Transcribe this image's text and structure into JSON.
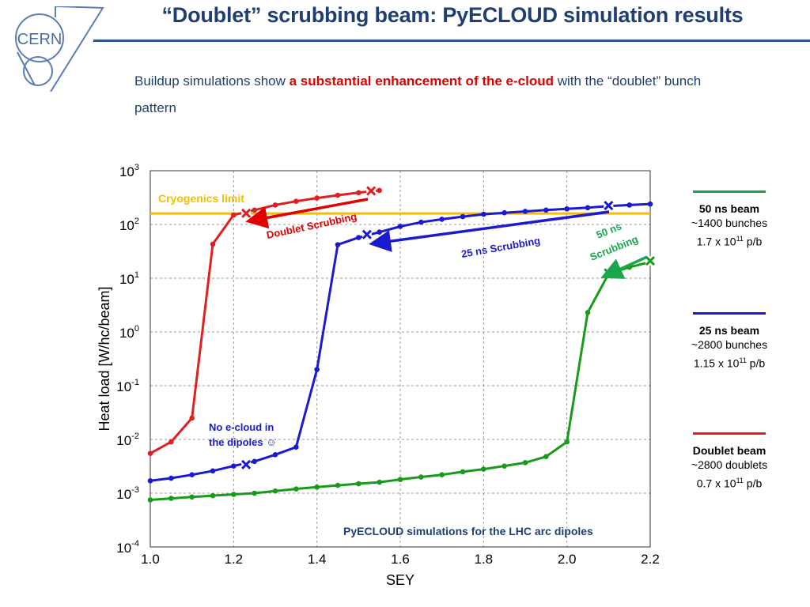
{
  "slide": {
    "title": "“Doublet” scrubbing beam: PyECLOUD simulation results",
    "subtitle_parts": [
      "Buildup simulations show ",
      "a substantial enhancement of the e-cloud",
      " with the “doublet”  bunch pattern"
    ],
    "logo_text": "CERN"
  },
  "colors": {
    "title": "#1f3f73",
    "highlight": "#e00000",
    "green": "#1a9a1a",
    "blue": "#1a1ad0",
    "red": "#e02020",
    "cryo": "#f5bd00",
    "annotation_dark_blue": "#1f3f73"
  },
  "legend": [
    {
      "name": "50 ns beam",
      "l1": "~1400 bunches",
      "l2a": "1.7 x 10",
      "l2sup": "11",
      "l2b": " p/b",
      "color": "#1aa64a"
    },
    {
      "name": "25 ns beam",
      "l1": "~2800 bunches",
      "l2a": "1.15 x 10",
      "l2sup": "11",
      "l2b": " p/b",
      "color": "#1a1ad0"
    },
    {
      "name": "Doublet beam",
      "l1": "~2800 doublets",
      "l2a": "0.7 x 10",
      "l2sup": "11",
      "l2b": " p/b",
      "color": "#e02020"
    }
  ],
  "annotations": {
    "cryo": "Cryogenics limit",
    "doublet_scrubbing": "Doublet Scrubbing",
    "scrubbing_25": "25 ns Scrubbing",
    "scrubbing_50_line1": "50 ns",
    "scrubbing_50_line2": "Scrubbing",
    "no_ecloud_line1": "No e-cloud in",
    "no_ecloud_line2": "the dipoles ☺",
    "pyecloud_note": "PyECLOUD simulations for the LHC arc dipoles"
  },
  "chart_data": {
    "type": "line",
    "xlabel": "SEY",
    "ylabel": "Heat load [W/hc/beam]",
    "xlim": [
      1.0,
      2.2
    ],
    "y_scale": "log",
    "ylim": [
      0.0001,
      1000
    ],
    "x_ticks": [
      "1.0",
      "1.2",
      "1.4",
      "1.6",
      "1.8",
      "2.0",
      "2.2"
    ],
    "y_ticks": [
      {
        "value": 1000,
        "base": "10",
        "exp": "3"
      },
      {
        "value": 100,
        "base": "10",
        "exp": "2"
      },
      {
        "value": 10,
        "base": "10",
        "exp": "1"
      },
      {
        "value": 1,
        "base": "10",
        "exp": "0"
      },
      {
        "value": 0.1,
        "base": "10",
        "exp": "-1"
      },
      {
        "value": 0.01,
        "base": "10",
        "exp": "-2"
      },
      {
        "value": 0.001,
        "base": "10",
        "exp": "-3"
      },
      {
        "value": 0.0001,
        "base": "10",
        "exp": "-4"
      }
    ],
    "grid": true,
    "cryogenics_limit": 160,
    "series": [
      {
        "name": "50 ns beam",
        "color": "#1a9a1a",
        "x": [
          1.0,
          1.05,
          1.1,
          1.15,
          1.2,
          1.25,
          1.3,
          1.35,
          1.4,
          1.45,
          1.5,
          1.55,
          1.6,
          1.65,
          1.7,
          1.75,
          1.8,
          1.85,
          1.9,
          1.95,
          2.0,
          2.05,
          2.1,
          2.15,
          2.2
        ],
        "y": [
          0.00075,
          0.0008,
          0.00085,
          0.0009,
          0.00095,
          0.001,
          0.0011,
          0.0012,
          0.0013,
          0.0014,
          0.0015,
          0.0016,
          0.0018,
          0.002,
          0.0022,
          0.0025,
          0.0028,
          0.0032,
          0.0037,
          0.0048,
          0.009,
          2.3,
          12,
          16,
          20
        ]
      },
      {
        "name": "25 ns beam",
        "color": "#1a1ad0",
        "x": [
          1.0,
          1.05,
          1.1,
          1.15,
          1.2,
          1.25,
          1.3,
          1.35,
          1.4,
          1.45,
          1.5,
          1.55,
          1.6,
          1.65,
          1.7,
          1.75,
          1.8,
          1.85,
          1.9,
          1.95,
          2.0,
          2.05,
          2.1,
          2.15,
          2.2
        ],
        "y": [
          0.0017,
          0.0019,
          0.0022,
          0.0026,
          0.0032,
          0.0039,
          0.0052,
          0.0072,
          0.2,
          42,
          57,
          72,
          92,
          110,
          125,
          140,
          155,
          165,
          175,
          185,
          195,
          205,
          220,
          230,
          240
        ]
      },
      {
        "name": "Doublet beam",
        "color": "#e02020",
        "x": [
          1.0,
          1.05,
          1.1,
          1.15,
          1.2,
          1.25,
          1.3,
          1.35,
          1.4,
          1.45,
          1.5,
          1.55
        ],
        "y": [
          0.0055,
          0.009,
          0.025,
          43,
          150,
          185,
          230,
          270,
          310,
          350,
          390,
          430
        ]
      }
    ],
    "markers": [
      {
        "series": "Doublet beam",
        "x": 1.53,
        "y": 420
      },
      {
        "series": "Doublet beam",
        "x": 1.23,
        "y": 162
      },
      {
        "series": "25 ns beam",
        "x": 2.1,
        "y": 225
      },
      {
        "series": "25 ns beam",
        "x": 1.52,
        "y": 65
      },
      {
        "series": "25 ns beam",
        "x": 1.23,
        "y": 0.0034
      },
      {
        "series": "50 ns beam",
        "x": 2.2,
        "y": 21
      },
      {
        "series": "50 ns beam",
        "x": 2.1,
        "y": 12.5
      }
    ]
  }
}
